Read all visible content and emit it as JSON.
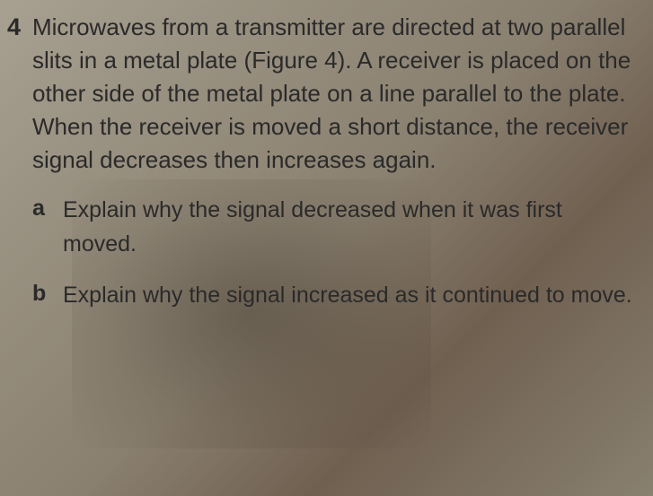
{
  "question": {
    "number": "4",
    "body": "Microwaves from a transmitter are directed at two parallel slits in a metal plate (Figure 4). A receiver is placed on the other side of the metal plate on a line parallel to the plate. When the receiver is moved a short distance, the receiver signal decreases then increases again.",
    "parts": [
      {
        "label": "a",
        "text": "Explain why the signal decreased when it was first moved."
      },
      {
        "label": "b",
        "text": "Explain why the signal increased as it continued to move."
      }
    ]
  },
  "style": {
    "bg_gradient_start": "#a8a090",
    "bg_gradient_end": "#888070",
    "text_color": "#2a2a2a",
    "body_fontsize": 26,
    "sub_fontsize": 25
  }
}
